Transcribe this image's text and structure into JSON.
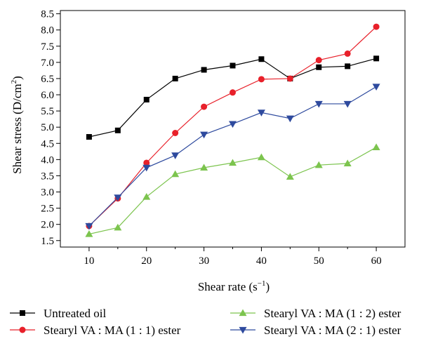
{
  "chart_data": {
    "type": "line",
    "xlabel": "Shear rate (s",
    "xlabel_sup": "−1",
    "xlabel_end": ")",
    "ylabel": "Shear stress (D/cm",
    "ylabel_sup": "2",
    "ylabel_end": ")",
    "xlim": [
      5,
      65
    ],
    "ylim": [
      1.3,
      8.6
    ],
    "x_ticks": [
      10,
      20,
      30,
      40,
      50,
      60
    ],
    "y_ticks": [
      1.5,
      2.0,
      2.5,
      3.0,
      3.5,
      4.0,
      4.5,
      5.0,
      5.5,
      6.0,
      6.5,
      7.0,
      7.5,
      8.0,
      8.5
    ],
    "x": [
      10,
      15,
      20,
      25,
      30,
      35,
      40,
      45,
      50,
      55,
      60
    ],
    "legend_position": "bottom",
    "grid": false,
    "series": [
      {
        "name": "Untreated oil",
        "color": "#000000",
        "marker": "square",
        "values": [
          4.7,
          4.9,
          5.85,
          6.5,
          6.77,
          6.9,
          7.1,
          6.5,
          6.85,
          6.88,
          7.12
        ]
      },
      {
        "name": "Stearyl VA : MA (1 : 1) ester",
        "color": "#e8202a",
        "marker": "circle",
        "values": [
          1.95,
          2.8,
          3.9,
          4.82,
          5.63,
          6.07,
          6.48,
          6.5,
          7.07,
          7.27,
          8.1
        ]
      },
      {
        "name": "Stearyl VA : MA (1 : 2) ester",
        "color": "#7cc44e",
        "marker": "triangle-up",
        "values": [
          1.7,
          1.9,
          2.85,
          3.55,
          3.75,
          3.9,
          4.07,
          3.47,
          3.83,
          3.88,
          4.38
        ]
      },
      {
        "name": "Stearyl VA : MA (2 : 1) ester",
        "color": "#2e4a9e",
        "marker": "triangle-down",
        "values": [
          1.95,
          2.83,
          3.75,
          4.13,
          4.77,
          5.1,
          5.45,
          5.27,
          5.72,
          5.72,
          6.25
        ]
      }
    ]
  }
}
